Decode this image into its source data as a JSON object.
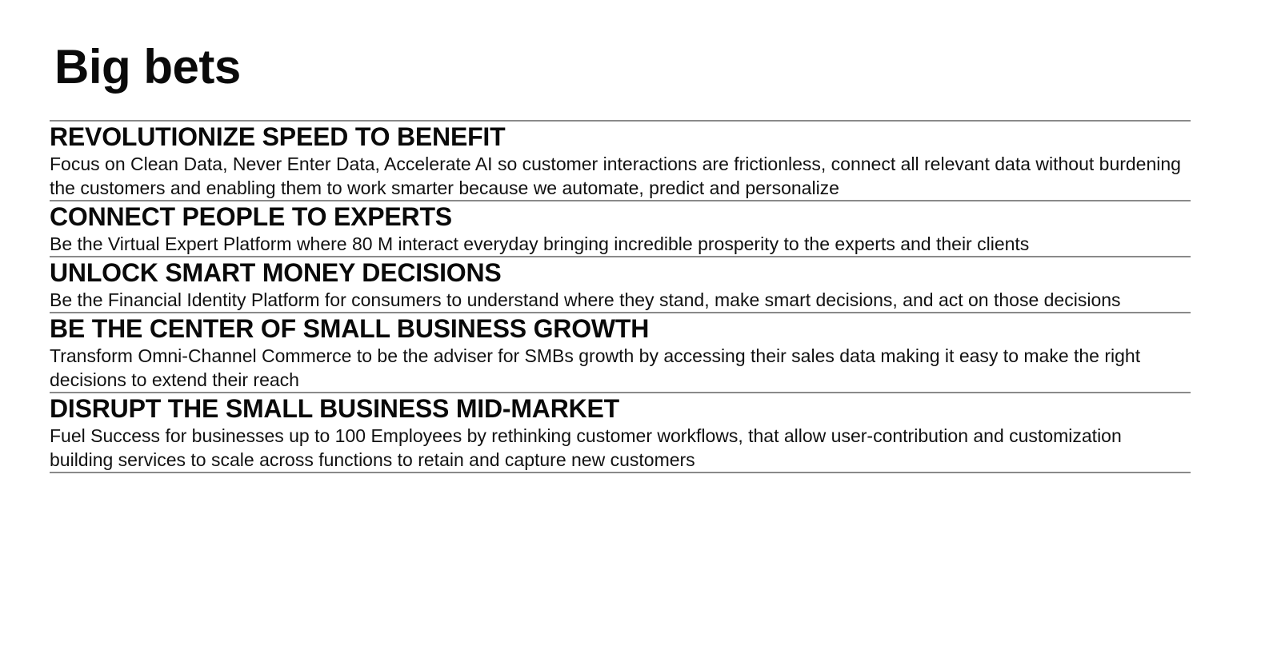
{
  "page": {
    "title": "Big bets"
  },
  "bets": [
    {
      "heading": "REVOLUTIONIZE SPEED TO BENEFIT",
      "description": "Focus on Clean Data, Never Enter Data, Accelerate AI  so customer interactions are frictionless, connect all relevant data without burdening the customers and enabling them to work smarter because we automate, predict and personalize"
    },
    {
      "heading": "CONNECT PEOPLE TO EXPERTS",
      "description": "Be the Virtual Expert Platform where 80 M interact everyday bringing incredible prosperity to the experts and their clients"
    },
    {
      "heading": "UNLOCK SMART MONEY DECISIONS",
      "description": "Be the Financial Identity Platform for consumers to understand where they stand, make smart decisions, and act on those decisions"
    },
    {
      "heading": "BE THE CENTER OF SMALL BUSINESS GROWTH",
      "description": "Transform Omni-Channel Commerce to be the adviser for SMBs growth by accessing their sales data making it easy to make the right decisions to extend their reach"
    },
    {
      "heading": "DISRUPT THE SMALL BUSINESS MID-MARKET",
      "description": "Fuel Success for businesses up to 100 Employees by rethinking customer workflows, that allow user-contribution and customization building services to scale across functions to retain and capture new customers"
    }
  ]
}
